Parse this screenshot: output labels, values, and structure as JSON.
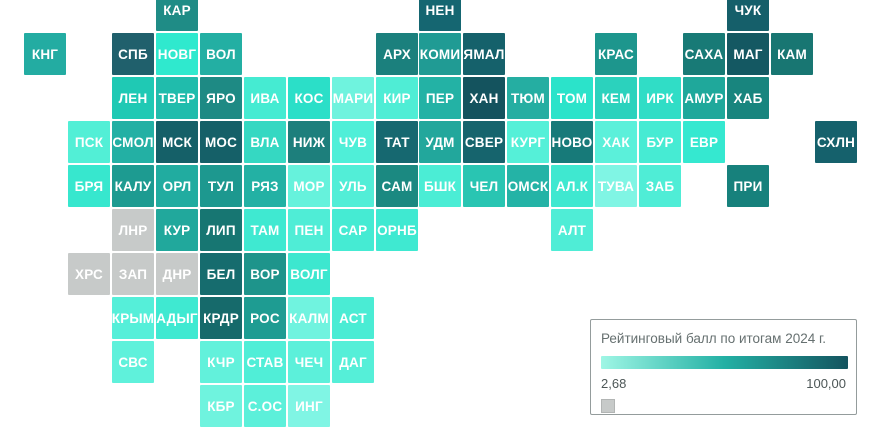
{
  "chart_data": {
    "type": "heatmap",
    "subtype": "tile-cartogram-russia-regions",
    "legend": {
      "title": "Рейтинговый балл по итогам 2024 г.",
      "min_label": "2,68",
      "max_label": "100,00",
      "gradient_start": "#9ff6e5",
      "gradient_mid": "#23b0a4",
      "gradient_end": "#14545f",
      "no_data_color": "#c7cac9"
    },
    "tile_text_color": "#ffffff",
    "tiles": [
      {
        "label": "КАР",
        "col": 3,
        "row": 0,
        "color": "#1f8c86"
      },
      {
        "label": "НЕН",
        "col": 9,
        "row": 0,
        "color": "#156671"
      },
      {
        "label": "ЧУК",
        "col": 16,
        "row": 0,
        "color": "#155f6a"
      },
      {
        "label": "КНГ",
        "col": 0,
        "row": 1,
        "color": "#23aca2"
      },
      {
        "label": "СПБ",
        "col": 2,
        "row": 1,
        "color": "#20606c"
      },
      {
        "label": "НОВГ",
        "col": 3,
        "row": 1,
        "color": "#2fe9ce"
      },
      {
        "label": "ВОЛ",
        "col": 4,
        "row": 1,
        "color": "#23afa3"
      },
      {
        "label": "АРХ",
        "col": 8,
        "row": 1,
        "color": "#1b807d"
      },
      {
        "label": "КОМИ",
        "col": 9,
        "row": 1,
        "color": "#209b94"
      },
      {
        "label": "ЯМАЛ",
        "col": 10,
        "row": 1,
        "color": "#15616b"
      },
      {
        "label": "КРАС",
        "col": 13,
        "row": 1,
        "color": "#1d968d"
      },
      {
        "label": "САХА",
        "col": 15,
        "row": 1,
        "color": "#187a76"
      },
      {
        "label": "МАГ",
        "col": 16,
        "row": 1,
        "color": "#145862"
      },
      {
        "label": "КАМ",
        "col": 17,
        "row": 1,
        "color": "#187672"
      },
      {
        "label": "ЛЕН",
        "col": 2,
        "row": 2,
        "color": "#1fc9b4"
      },
      {
        "label": "ТВЕР",
        "col": 3,
        "row": 2,
        "color": "#20bcac"
      },
      {
        "label": "ЯРО",
        "col": 4,
        "row": 2,
        "color": "#1e8a84"
      },
      {
        "label": "ИВА",
        "col": 5,
        "row": 2,
        "color": "#45ebd2"
      },
      {
        "label": "КОС",
        "col": 6,
        "row": 2,
        "color": "#2bdfc8"
      },
      {
        "label": "МАРИ",
        "col": 7,
        "row": 2,
        "color": "#6ff3de"
      },
      {
        "label": "КИР",
        "col": 8,
        "row": 2,
        "color": "#4fedd5"
      },
      {
        "label": "ПЕР",
        "col": 9,
        "row": 2,
        "color": "#23b2a5"
      },
      {
        "label": "ХАН",
        "col": 10,
        "row": 2,
        "color": "#14535e"
      },
      {
        "label": "ТЮМ",
        "col": 11,
        "row": 2,
        "color": "#25aea2"
      },
      {
        "label": "ТОМ",
        "col": 12,
        "row": 2,
        "color": "#2be3ca"
      },
      {
        "label": "КЕМ",
        "col": 13,
        "row": 2,
        "color": "#2bd2bd"
      },
      {
        "label": "ИРК",
        "col": 14,
        "row": 2,
        "color": "#30ddc6"
      },
      {
        "label": "АМУР",
        "col": 15,
        "row": 2,
        "color": "#1fa89b"
      },
      {
        "label": "ХАБ",
        "col": 16,
        "row": 2,
        "color": "#18857e"
      },
      {
        "label": "ПСК",
        "col": 1,
        "row": 3,
        "color": "#52efd6"
      },
      {
        "label": "СМОЛ",
        "col": 2,
        "row": 3,
        "color": "#23b0a4"
      },
      {
        "label": "МСК",
        "col": 3,
        "row": 3,
        "color": "#156068"
      },
      {
        "label": "МОС",
        "col": 4,
        "row": 3,
        "color": "#156068"
      },
      {
        "label": "ВЛА",
        "col": 5,
        "row": 3,
        "color": "#35d8c2"
      },
      {
        "label": "НИЖ",
        "col": 6,
        "row": 3,
        "color": "#1d7f7c"
      },
      {
        "label": "ЧУВ",
        "col": 7,
        "row": 3,
        "color": "#4fefd8"
      },
      {
        "label": "ТАТ",
        "col": 8,
        "row": 3,
        "color": "#166870"
      },
      {
        "label": "УДМ",
        "col": 9,
        "row": 3,
        "color": "#22a79c"
      },
      {
        "label": "СВЕР",
        "col": 10,
        "row": 3,
        "color": "#16646d"
      },
      {
        "label": "КУРГ",
        "col": 11,
        "row": 3,
        "color": "#55f0d8"
      },
      {
        "label": "НОВО",
        "col": 12,
        "row": 3,
        "color": "#177a79"
      },
      {
        "label": "ХАК",
        "col": 13,
        "row": 3,
        "color": "#5bf0da"
      },
      {
        "label": "БУР",
        "col": 14,
        "row": 3,
        "color": "#46ebd3"
      },
      {
        "label": "ЕВР",
        "col": 15,
        "row": 3,
        "color": "#35e8d0"
      },
      {
        "label": "СХЛН",
        "col": 18,
        "row": 3,
        "color": "#15616c"
      },
      {
        "label": "БРЯ",
        "col": 1,
        "row": 4,
        "color": "#37e7ce"
      },
      {
        "label": "КАЛУ",
        "col": 2,
        "row": 4,
        "color": "#1d9b91"
      },
      {
        "label": "ОРЛ",
        "col": 3,
        "row": 4,
        "color": "#21aca0"
      },
      {
        "label": "ТУЛ",
        "col": 4,
        "row": 4,
        "color": "#1d988f"
      },
      {
        "label": "РЯЗ",
        "col": 5,
        "row": 4,
        "color": "#23b1a4"
      },
      {
        "label": "МОР",
        "col": 6,
        "row": 4,
        "color": "#66f2dc"
      },
      {
        "label": "УЛЬ",
        "col": 7,
        "row": 4,
        "color": "#52eed7"
      },
      {
        "label": "САМ",
        "col": 8,
        "row": 4,
        "color": "#1b8981"
      },
      {
        "label": "БШК",
        "col": 9,
        "row": 4,
        "color": "#4bedd5"
      },
      {
        "label": "ЧЕЛ",
        "col": 10,
        "row": 4,
        "color": "#29c5b2"
      },
      {
        "label": "ОМСК",
        "col": 11,
        "row": 4,
        "color": "#24b3a6"
      },
      {
        "label": "АЛ.К",
        "col": 12,
        "row": 4,
        "color": "#3fe8d0"
      },
      {
        "label": "ТУВА",
        "col": 13,
        "row": 4,
        "color": "#80f5e4"
      },
      {
        "label": "ЗАБ",
        "col": 14,
        "row": 4,
        "color": "#4fedd6"
      },
      {
        "label": "ПРИ",
        "col": 16,
        "row": 4,
        "color": "#17817c"
      },
      {
        "label": "ЛНР",
        "col": 2,
        "row": 5,
        "color": "#c7cac9"
      },
      {
        "label": "КУР",
        "col": 3,
        "row": 5,
        "color": "#21a89c"
      },
      {
        "label": "ЛИП",
        "col": 4,
        "row": 5,
        "color": "#177672"
      },
      {
        "label": "ТАМ",
        "col": 5,
        "row": 5,
        "color": "#3fe9d1"
      },
      {
        "label": "ПЕН",
        "col": 6,
        "row": 5,
        "color": "#4fedd6"
      },
      {
        "label": "САР",
        "col": 7,
        "row": 5,
        "color": "#45ebd3"
      },
      {
        "label": "ОРНБ",
        "col": 8,
        "row": 5,
        "color": "#3fe9d1"
      },
      {
        "label": "АЛТ",
        "col": 12,
        "row": 5,
        "color": "#4fedd6"
      },
      {
        "label": "ХРС",
        "col": 1,
        "row": 6,
        "color": "#c7cac9"
      },
      {
        "label": "ЗАП",
        "col": 2,
        "row": 6,
        "color": "#c7cac9"
      },
      {
        "label": "ДНР",
        "col": 3,
        "row": 6,
        "color": "#c7cac9"
      },
      {
        "label": "БЕЛ",
        "col": 4,
        "row": 6,
        "color": "#166c6e"
      },
      {
        "label": "ВОР",
        "col": 5,
        "row": 6,
        "color": "#1e948b"
      },
      {
        "label": "ВОЛГ",
        "col": 6,
        "row": 6,
        "color": "#3de7cf"
      },
      {
        "label": "КРЫМ",
        "col": 2,
        "row": 7,
        "color": "#55efd9"
      },
      {
        "label": "АДЫГ",
        "col": 3,
        "row": 7,
        "color": "#3fe9d1"
      },
      {
        "label": "КРДР",
        "col": 4,
        "row": 7,
        "color": "#166a6b"
      },
      {
        "label": "РОС",
        "col": 5,
        "row": 7,
        "color": "#1e9c92"
      },
      {
        "label": "КАЛМ",
        "col": 6,
        "row": 7,
        "color": "#70f3df"
      },
      {
        "label": "АСТ",
        "col": 7,
        "row": 7,
        "color": "#4aecd4"
      },
      {
        "label": "СВС",
        "col": 2,
        "row": 8,
        "color": "#5ff1db"
      },
      {
        "label": "КЧР",
        "col": 4,
        "row": 8,
        "color": "#62f1db"
      },
      {
        "label": "СТАВ",
        "col": 5,
        "row": 8,
        "color": "#50eed7"
      },
      {
        "label": "ЧЕЧ",
        "col": 6,
        "row": 8,
        "color": "#5cf0da"
      },
      {
        "label": "ДАГ",
        "col": 7,
        "row": 8,
        "color": "#55efd8"
      },
      {
        "label": "КБР",
        "col": 4,
        "row": 9,
        "color": "#6ff3de"
      },
      {
        "label": "С.ОС",
        "col": 5,
        "row": 9,
        "color": "#5cf0da"
      },
      {
        "label": "ИНГ",
        "col": 6,
        "row": 9,
        "color": "#80f5e4"
      }
    ]
  }
}
